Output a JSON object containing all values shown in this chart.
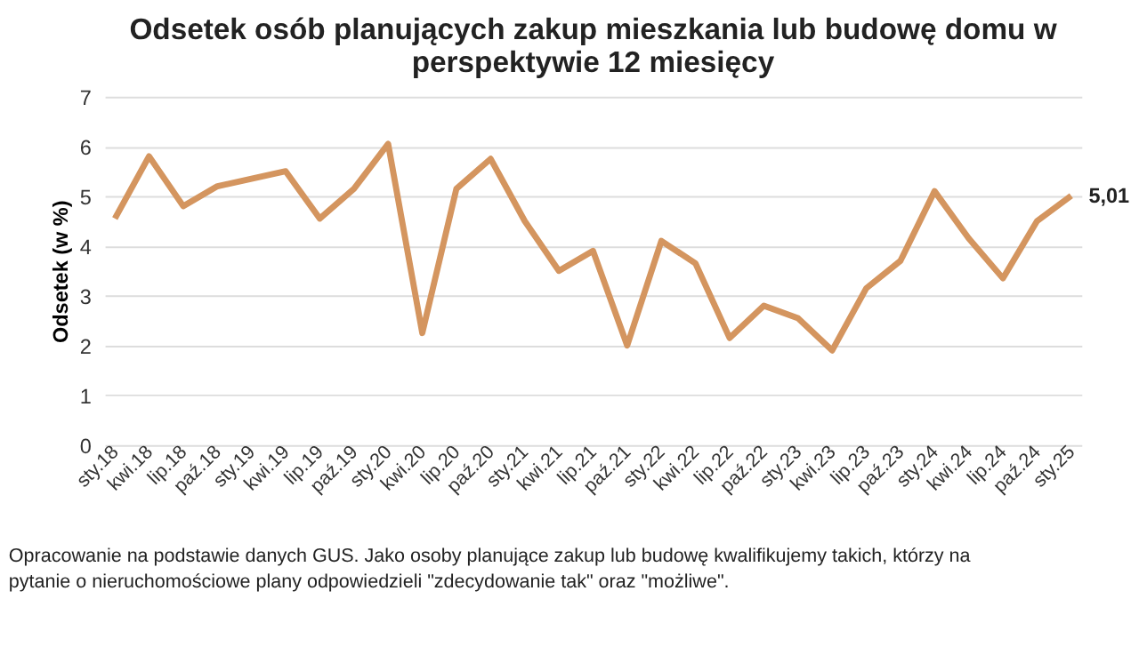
{
  "chart_data": {
    "type": "line",
    "title": "Odsetek osób planujących zakup mieszkania lub budowę domu w perspektywie 12 miesięcy",
    "ylabel": "Odsetek (w %)",
    "categories": [
      "sty.18",
      "kwi.18",
      "lip.18",
      "paź.18",
      "sty.19",
      "kwi.19",
      "lip.19",
      "paź.19",
      "sty.20",
      "kwi.20",
      "lip.20",
      "paź.20",
      "sty.21",
      "kwi.21",
      "lip.21",
      "paź.21",
      "sty.22",
      "kwi.22",
      "lip.22",
      "paź.22",
      "sty.23",
      "kwi.23",
      "lip.23",
      "paź.23",
      "sty.24",
      "kwi.24",
      "lip.24",
      "paź.24",
      "sty.25"
    ],
    "series": [
      {
        "color": "#d4955f",
        "values": [
          4.55,
          5.8,
          4.8,
          5.2,
          5.35,
          5.5,
          4.55,
          5.15,
          6.05,
          2.25,
          5.15,
          5.75,
          4.5,
          3.5,
          3.9,
          2.0,
          4.1,
          3.65,
          2.15,
          2.8,
          2.55,
          1.9,
          3.15,
          3.7,
          5.1,
          4.15,
          3.35,
          4.5,
          5.01
        ],
        "value_labels": [
          null,
          null,
          null,
          null,
          null,
          null,
          null,
          null,
          null,
          null,
          null,
          null,
          null,
          null,
          null,
          null,
          null,
          null,
          null,
          null,
          null,
          null,
          null,
          null,
          null,
          null,
          null,
          null,
          "5,01"
        ]
      }
    ],
    "ylim": [
      0,
      7
    ],
    "yticks": [
      0,
      1,
      2,
      3,
      4,
      5,
      6,
      7
    ],
    "grid": "y",
    "marker": "none",
    "line_style": "solid",
    "annotations": [
      "Opracowanie na podstawie danych GUS. Jako osoby planujące zakup lub budowę kwalifikujemy takich, którzy na pytanie o nieruchomościowe plany odpowiedzieli \"zdecydowanie tak\" oraz \"możliwe\"."
    ]
  }
}
